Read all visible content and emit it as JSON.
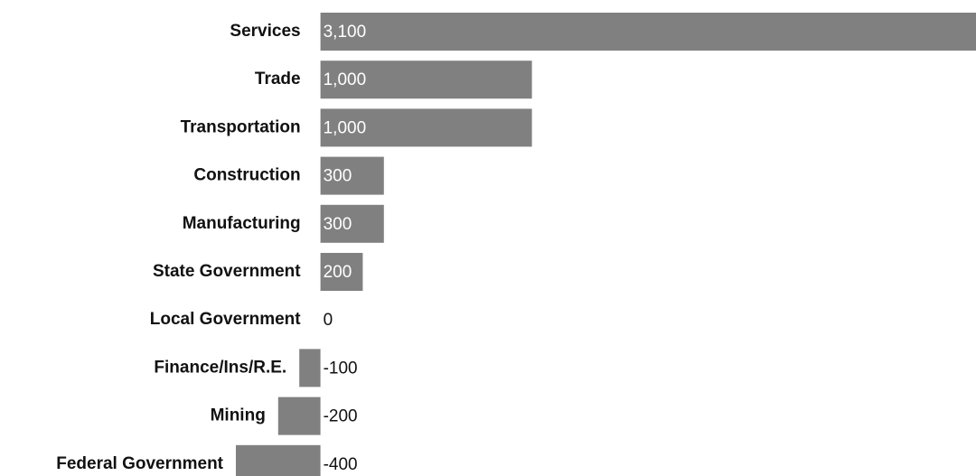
{
  "chart_data": {
    "type": "bar",
    "orientation": "horizontal",
    "categories": [
      "Services",
      "Trade",
      "Transportation",
      "Construction",
      "Manufacturing",
      "State Government",
      "Local Government",
      "Finance/Ins/R.E.",
      "Mining",
      "Federal Government"
    ],
    "values": [
      3100,
      1000,
      1000,
      300,
      300,
      200,
      0,
      -100,
      -200,
      -400
    ],
    "value_labels": [
      "3,100",
      "1,000",
      "1,000",
      "300",
      "300",
      "200",
      "0",
      "-100",
      "-200",
      "-400"
    ],
    "color": "#808080"
  }
}
